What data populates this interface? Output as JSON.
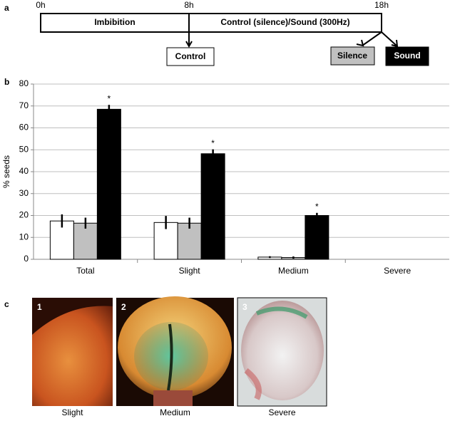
{
  "panel_a": {
    "label": "a",
    "times": [
      "0h",
      "8h",
      "18h"
    ],
    "phases": [
      "Imbibition",
      "Control (silence)/Sound (300Hz)"
    ]
  },
  "chart_data": {
    "type": "bar",
    "label": "b",
    "ylabel": "% seeds",
    "categories": [
      "Total",
      "Slight",
      "Medium",
      "Severe"
    ],
    "series": [
      {
        "name": "Control",
        "color": "#ffffff",
        "values": [
          17.5,
          16.8,
          1,
          0
        ],
        "errors": [
          3,
          3,
          0.4,
          0
        ]
      },
      {
        "name": "Silence",
        "color": "#c0c0c0",
        "values": [
          16.5,
          16.5,
          0.8,
          0
        ],
        "errors": [
          2.5,
          2.5,
          0.5,
          0
        ]
      },
      {
        "name": "Sound",
        "color": "#000000",
        "values": [
          68.5,
          48.2,
          20,
          0
        ],
        "errors": [
          2,
          2,
          1.2,
          0
        ],
        "significance": [
          "*",
          "*",
          "*",
          null
        ]
      }
    ],
    "ylim": [
      0,
      80
    ],
    "yticks": [
      0,
      10,
      20,
      30,
      40,
      50,
      60,
      70,
      80
    ],
    "grid": true
  },
  "panel_c": {
    "label": "c",
    "images": [
      {
        "number": "1",
        "caption": "Slight"
      },
      {
        "number": "2",
        "caption": "Medium"
      },
      {
        "number": "3",
        "caption": "Severe"
      }
    ]
  }
}
